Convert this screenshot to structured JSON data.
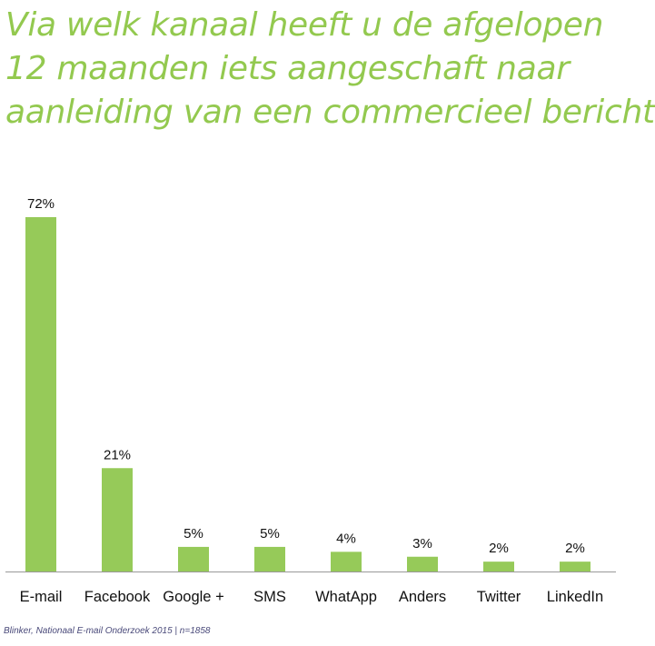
{
  "title_lines": [
    "Via welk kanaal heeft u de afgelopen",
    "12 maanden iets aangeschaft naar",
    "aanleiding van een commercieel bericht?"
  ],
  "source": "Blinker, Nationaal E-mail Onderzoek 2015 | n=1858",
  "colors": {
    "title": "#93c94f",
    "bar": "#96ca59",
    "axis": "#999999"
  },
  "chart_data": {
    "type": "bar",
    "title": "Via welk kanaal heeft u de afgelopen 12 maanden iets aangeschaft naar aanleiding van een commercieel bericht?",
    "categories": [
      "E-mail",
      "Facebook",
      "Google +",
      "SMS",
      "WhatApp",
      "Anders",
      "Twitter",
      "LinkedIn"
    ],
    "values": [
      72,
      21,
      5,
      5,
      4,
      3,
      2,
      2
    ],
    "labels": [
      "72%",
      "21%",
      "5%",
      "5%",
      "4%",
      "3%",
      "2%",
      "2%"
    ],
    "unit": "%",
    "xlabel": "",
    "ylabel": "",
    "ylim": [
      0,
      72
    ],
    "grid": false,
    "legend": "none"
  }
}
